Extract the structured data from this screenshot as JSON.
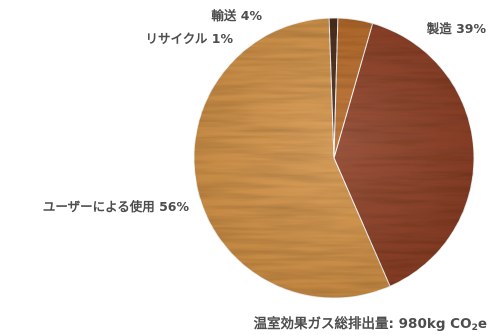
{
  "chart_data": {
    "type": "pie",
    "title": "",
    "slices": [
      {
        "label": "製造 39%",
        "value": 39,
        "color": "#8e3e22"
      },
      {
        "label": "ユーザーによる使用 56%",
        "value": 56,
        "color": "#d69446"
      },
      {
        "label": "リサイクル 1%",
        "value": 1,
        "color": "#4a2a18"
      },
      {
        "label": "輸送 4%",
        "value": 4,
        "color": "#b96a26"
      }
    ],
    "total": {
      "prefix": "温室効果ガス総排出量: 980kg CO",
      "subscript": "2",
      "suffix": "e"
    },
    "legend": "none",
    "start_angle_deg": 16
  }
}
